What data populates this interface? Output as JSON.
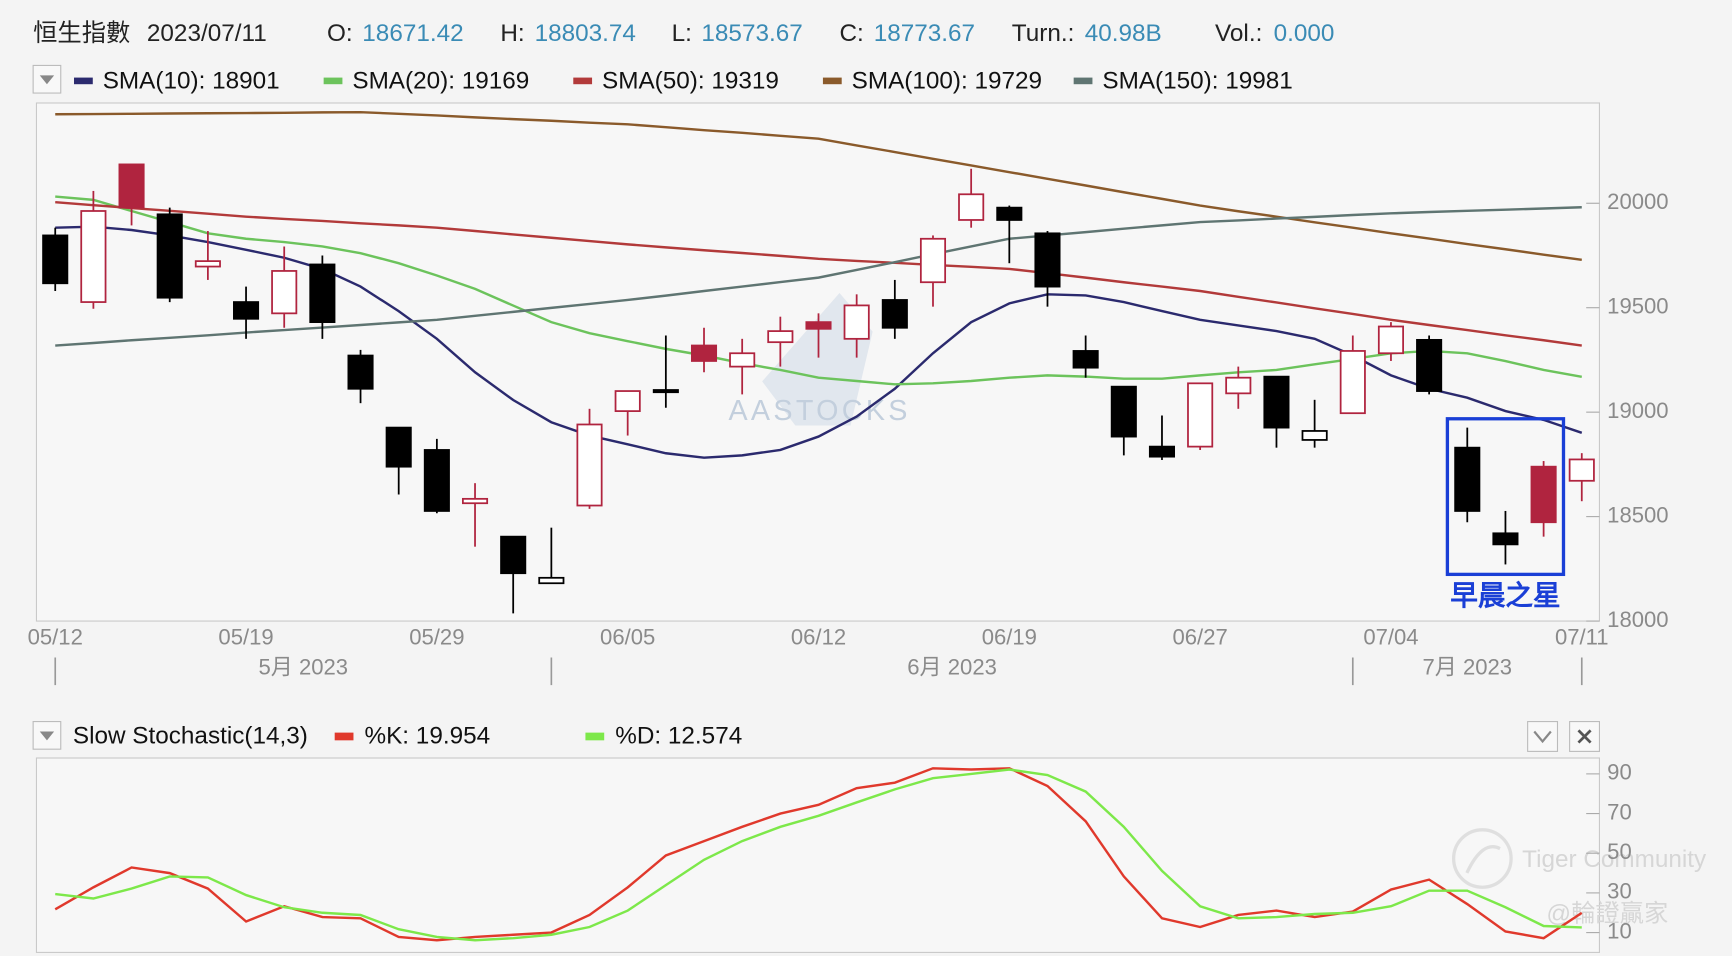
{
  "chart_data": [
    {
      "type": "candlestick",
      "title": "恒生指數",
      "date": "2023/07/11",
      "header": [
        {
          "label": "O:"
        },
        {
          "label": "H:"
        },
        {
          "label": "L:"
        },
        {
          "label": "C:"
        },
        {
          "label": "Turn.:",
          "value": "40.98B"
        },
        {
          "label": "Vol.:",
          "value": "0.000"
        }
      ],
      "categories": [
        "05/12",
        null,
        null,
        null,
        null,
        "05/19",
        null,
        null,
        null,
        null,
        "05/29",
        null,
        null,
        null,
        null,
        "06/05",
        null,
        null,
        null,
        null,
        "06/12",
        null,
        null,
        null,
        null,
        "06/19",
        null,
        null,
        null,
        null,
        "06/27",
        null,
        null,
        null,
        null,
        "07/04",
        null,
        null,
        null,
        null,
        "07/11"
      ],
      "month_labels": [
        "5月 2023",
        "6月 2023",
        "7月 2023"
      ],
      "open": [
        19846,
        19527,
        20186,
        19947,
        19697,
        19527,
        19473,
        19707,
        19271,
        18926,
        18819,
        18564,
        18404,
        18181,
        18553,
        19005,
        19106,
        19319,
        19218,
        19335,
        19431,
        19351,
        19537,
        19622,
        19920,
        19979,
        19856,
        19293,
        19122,
        18835,
        18835,
        19090,
        19170,
        18867,
        18995,
        19282,
        19346,
        18830,
        18420,
        18739,
        18671.42
      ],
      "high": [
        19883,
        20059,
        20186,
        19979,
        19867,
        19601,
        19793,
        19750,
        19298,
        18926,
        18872,
        18660,
        18404,
        18447,
        19016,
        19101,
        19367,
        19404,
        19351,
        19457,
        19473,
        19564,
        19633,
        19846,
        20165,
        19989,
        19867,
        19367,
        19122,
        18984,
        19138,
        19218,
        19170,
        19059,
        19367,
        19431,
        19367,
        18926,
        18527,
        18766,
        18803.74
      ],
      "low": [
        19580,
        19495,
        19894,
        19527,
        19633,
        19351,
        19404,
        19351,
        19043,
        18606,
        18516,
        18356,
        18037,
        18181,
        18537,
        18888,
        19021,
        19191,
        19085,
        19218,
        19261,
        19261,
        19351,
        19505,
        19883,
        19713,
        19505,
        19165,
        18793,
        18771,
        18819,
        19016,
        18830,
        18830,
        18995,
        19245,
        19085,
        18473,
        18271,
        18404,
        18573.67
      ],
      "close": [
        19617,
        19963,
        19979,
        19548,
        19723,
        19447,
        19676,
        19431,
        19112,
        18739,
        18527,
        18585,
        18229,
        18207,
        18941,
        19101,
        19101,
        19245,
        19282,
        19388,
        19399,
        19511,
        19404,
        19830,
        20043,
        19920,
        19601,
        19213,
        18883,
        18787,
        19138,
        19165,
        18926,
        18910,
        19293,
        19410,
        19101,
        18527,
        18367,
        18473,
        18773.67
      ],
      "up_color": "#b0243f",
      "down_color": "#000000",
      "series": [
        {
          "name": "SMA(10): 18901",
          "color": "#2b2a6e",
          "values": [
            19883,
            19888,
            19872,
            19846,
            19814,
            19777,
            19739,
            19686,
            19601,
            19484,
            19351,
            19191,
            19058,
            18952,
            18888,
            18846,
            18803,
            18782,
            18793,
            18819,
            18883,
            18979,
            19112,
            19282,
            19431,
            19521,
            19564,
            19559,
            19527,
            19484,
            19442,
            19415,
            19388,
            19351,
            19271,
            19176,
            19112,
            19069,
            19005,
            18963,
            18901
          ]
        },
        {
          "name": "SMA(20): 19169",
          "color": "#6cc35c",
          "values": [
            20032,
            20016,
            19963,
            19910,
            19856,
            19830,
            19814,
            19793,
            19761,
            19713,
            19654,
            19590,
            19510,
            19431,
            19378,
            19340,
            19303,
            19271,
            19234,
            19202,
            19165,
            19149,
            19133,
            19138,
            19149,
            19165,
            19176,
            19170,
            19160,
            19160,
            19176,
            19191,
            19202,
            19229,
            19255,
            19282,
            19293,
            19282,
            19245,
            19202,
            19169
          ]
        },
        {
          "name": "SMA(50): 19319",
          "color": "#b23a3a",
          "values": [
            20005,
            19991,
            19977,
            19964,
            19950,
            19936,
            19925,
            19915,
            19904,
            19894,
            19883,
            19867,
            19851,
            19835,
            19819,
            19803,
            19789,
            19775,
            19762,
            19748,
            19734,
            19724,
            19715,
            19705,
            19696,
            19686,
            19665,
            19644,
            19622,
            19601,
            19580,
            19552,
            19525,
            19497,
            19470,
            19442,
            19417,
            19393,
            19368,
            19344,
            19319
          ]
        },
        {
          "name": "SMA(100): 19729",
          "color": "#8a5a2b",
          "values": [
            20426,
            20427,
            20428,
            20430,
            20431,
            20432,
            20433,
            20435,
            20436,
            20428,
            20420,
            20411,
            20403,
            20395,
            20386,
            20378,
            20364,
            20350,
            20337,
            20323,
            20309,
            20277,
            20245,
            20213,
            20181,
            20149,
            20117,
            20085,
            20053,
            20021,
            19989,
            19962,
            19936,
            19909,
            19883,
            19856,
            19831,
            19805,
            19780,
            19754,
            19729
          ]
        },
        {
          "name": "SMA(150): 19981",
          "color": "#5f7572",
          "values": [
            19319,
            19331,
            19344,
            19356,
            19368,
            19381,
            19393,
            19405,
            19417,
            19430,
            19442,
            19461,
            19480,
            19499,
            19518,
            19537,
            19558,
            19580,
            19601,
            19623,
            19644,
            19681,
            19718,
            19756,
            19793,
            19830,
            19846,
            19862,
            19878,
            19894,
            19910,
            19918,
            19927,
            19935,
            19944,
            19952,
            19958,
            19964,
            19969,
            19975,
            19981
          ]
        }
      ],
      "ylim": [
        18000,
        20480
      ],
      "yticks": [
        18000,
        18500,
        19000,
        19500,
        20000
      ],
      "annotation": {
        "text": "早晨之星",
        "color": "#1a3fd6"
      },
      "watermark": "AASTOCKS"
    },
    {
      "type": "line",
      "title": "Slow Stochastic(14,3)",
      "series": [
        {
          "name": "%K: 19.954",
          "color": "#e0392c",
          "values": [
            21.7,
            32.8,
            42.8,
            40,
            32.2,
            15.6,
            23.3,
            17.8,
            17.2,
            7.8,
            6.1,
            7.8,
            8.9,
            10,
            18.9,
            32.8,
            48.9,
            56.1,
            63.3,
            70,
            74.4,
            82.8,
            85.6,
            92.8,
            92.2,
            92.8,
            83.9,
            66.1,
            38.3,
            17.2,
            12.8,
            18.9,
            21.1,
            17.8,
            20.6,
            31.7,
            36.7,
            24.4,
            10.6,
            7.2,
            19.954
          ]
        },
        {
          "name": "%D: 12.574",
          "color": "#7de84a",
          "values": [
            29.4,
            27.2,
            32.2,
            38.3,
            37.8,
            28.9,
            22.8,
            20,
            18.9,
            11.7,
            7.8,
            6.1,
            7.2,
            8.9,
            12.8,
            21.1,
            33.9,
            46.7,
            56.1,
            63.3,
            68.9,
            75.6,
            82.2,
            87.8,
            90,
            92.2,
            89.4,
            81.1,
            63.3,
            41.1,
            23.3,
            17.2,
            17.8,
            19.4,
            20,
            23.3,
            31.1,
            31.1,
            22.8,
            13.3,
            12.574
          ]
        }
      ],
      "ylim": [
        0,
        98
      ],
      "yticks": [
        10,
        30,
        50,
        70,
        90
      ]
    }
  ],
  "watermarks": [
    "Tiger Community",
    "@輪證贏家"
  ]
}
